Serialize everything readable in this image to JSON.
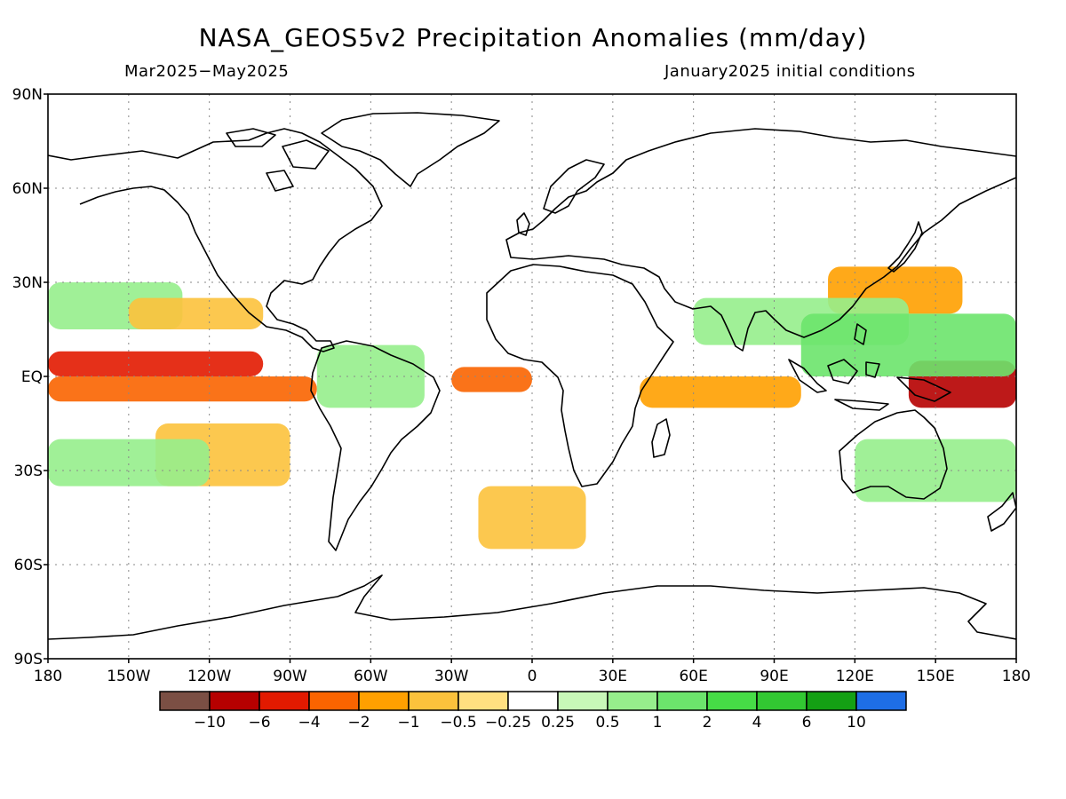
{
  "header": {
    "title": "NASA_GEOS5v2 Precipitation Anomalies (mm/day)",
    "subtitle_left": "Mar2025−May2025",
    "subtitle_right": "January2025 initial conditions"
  },
  "map": {
    "projection": "equirectangular",
    "lon_range": [
      -180,
      180
    ],
    "lat_range": [
      -90,
      90
    ],
    "grid": "dotted",
    "lat_labels": [
      "90N",
      "60N",
      "30N",
      "EQ",
      "30S",
      "60S",
      "90S"
    ],
    "lon_labels": [
      "180",
      "150W",
      "120W",
      "90W",
      "60W",
      "30W",
      "0",
      "30E",
      "60E",
      "90E",
      "120E",
      "150E",
      "180"
    ]
  },
  "legend": {
    "colors": [
      "#7b4f44",
      "#b60000",
      "#e21a00",
      "#fa6400",
      "#ffa000",
      "#fcc23c",
      "#ffe080",
      "#ffffff",
      "#c8f8b8",
      "#96ee8c",
      "#6ce46c",
      "#46dc46",
      "#32c832",
      "#14a014",
      "#1e6ee6"
    ],
    "labels": [
      "−10",
      "−6",
      "−4",
      "−2",
      "−1",
      "−0.5",
      "−0.25",
      "0.25",
      "0.5",
      "1",
      "2",
      "4",
      "6",
      "10"
    ]
  },
  "chart_data": {
    "type": "heatmap",
    "title": "NASA_GEOS5v2 Precipitation Anomalies (mm/day)",
    "units": "mm/day",
    "period": "Mar2025−May2025",
    "initialization": "January2025 initial conditions",
    "xlim": [
      -180,
      180
    ],
    "ylim": [
      -90,
      90
    ],
    "contour_levels": [
      -10,
      -6,
      -4,
      -2,
      -1,
      -0.5,
      -0.25,
      0.25,
      0.5,
      1,
      2,
      4,
      6,
      10
    ],
    "anomaly_regions": [
      {
        "lon": [
          -180,
          -100
        ],
        "lat": [
          0,
          8
        ],
        "value": -4
      },
      {
        "lon": [
          -180,
          -80
        ],
        "lat": [
          -8,
          0
        ],
        "value": -2
      },
      {
        "lon": [
          -180,
          -130
        ],
        "lat": [
          15,
          30
        ],
        "value": 1
      },
      {
        "lon": [
          -30,
          0
        ],
        "lat": [
          -5,
          3
        ],
        "value": -2
      },
      {
        "lon": [
          140,
          180
        ],
        "lat": [
          -10,
          5
        ],
        "value": -6
      },
      {
        "lon": [
          110,
          160
        ],
        "lat": [
          20,
          35
        ],
        "value": -1
      },
      {
        "lon": [
          40,
          100
        ],
        "lat": [
          -10,
          0
        ],
        "value": -1
      },
      {
        "lon": [
          60,
          140
        ],
        "lat": [
          10,
          25
        ],
        "value": 1
      },
      {
        "lon": [
          100,
          180
        ],
        "lat": [
          0,
          20
        ],
        "value": 2
      },
      {
        "lon": [
          -140,
          -90
        ],
        "lat": [
          -35,
          -15
        ],
        "value": -0.5
      },
      {
        "lon": [
          -20,
          20
        ],
        "lat": [
          -55,
          -35
        ],
        "value": -0.5
      },
      {
        "lon": [
          -180,
          -120
        ],
        "lat": [
          -35,
          -20
        ],
        "value": 1
      },
      {
        "lon": [
          -80,
          -40
        ],
        "lat": [
          -10,
          10
        ],
        "value": 1
      },
      {
        "lon": [
          -150,
          -100
        ],
        "lat": [
          15,
          25
        ],
        "value": -0.5
      },
      {
        "lon": [
          120,
          180
        ],
        "lat": [
          -40,
          -20
        ],
        "value": 1
      }
    ]
  }
}
